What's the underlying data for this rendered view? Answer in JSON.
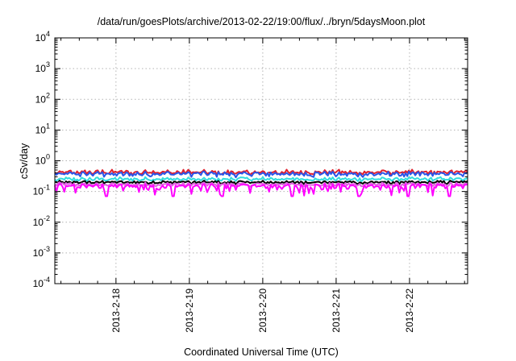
{
  "chart_data": {
    "type": "line",
    "title": "/data/run/goesPlots/archive/2013-02-22/19:00/flux/../bryn/5daysMoon.plot",
    "xlabel": "Coordinated Universal Time (UTC)",
    "ylabel": "cSv/day",
    "yscale": "log",
    "ylim": [
      0.0001,
      10000
    ],
    "xlim": [
      "2013-02-17T04:00",
      "2013-02-22T19:00"
    ],
    "x_ticks": [
      "2013-2-18",
      "2013-2-19",
      "2013-2-20",
      "2013-2-21",
      "2013-2-22"
    ],
    "y_ticks": [
      {
        "base": "10",
        "exp": "-4"
      },
      {
        "base": "10",
        "exp": "-3"
      },
      {
        "base": "10",
        "exp": "-2"
      },
      {
        "base": "10",
        "exp": "-1"
      },
      {
        "base": "10",
        "exp": "0"
      },
      {
        "base": "10",
        "exp": "1"
      },
      {
        "base": "10",
        "exp": "2"
      },
      {
        "base": "10",
        "exp": "3"
      },
      {
        "base": "10",
        "exp": "4"
      }
    ],
    "grid": true,
    "legend": "none",
    "series": [
      {
        "color": "#e0202e",
        "typical": 0.42,
        "low": 0.33,
        "high": 0.52
      },
      {
        "color": "#2a55e8",
        "typical": 0.37,
        "low": 0.28,
        "high": 0.46
      },
      {
        "color": "#33dddd",
        "typical": 0.25,
        "low": 0.21,
        "high": 0.3
      },
      {
        "color": "#000000",
        "typical": 0.2,
        "low": 0.17,
        "high": 0.23
      },
      {
        "color": "#e060e0",
        "typical": 0.17,
        "low": 0.14,
        "high": 0.2
      },
      {
        "color": "#ff00ff",
        "typical": 0.15,
        "low": 0.07,
        "high": 0.18
      }
    ]
  }
}
